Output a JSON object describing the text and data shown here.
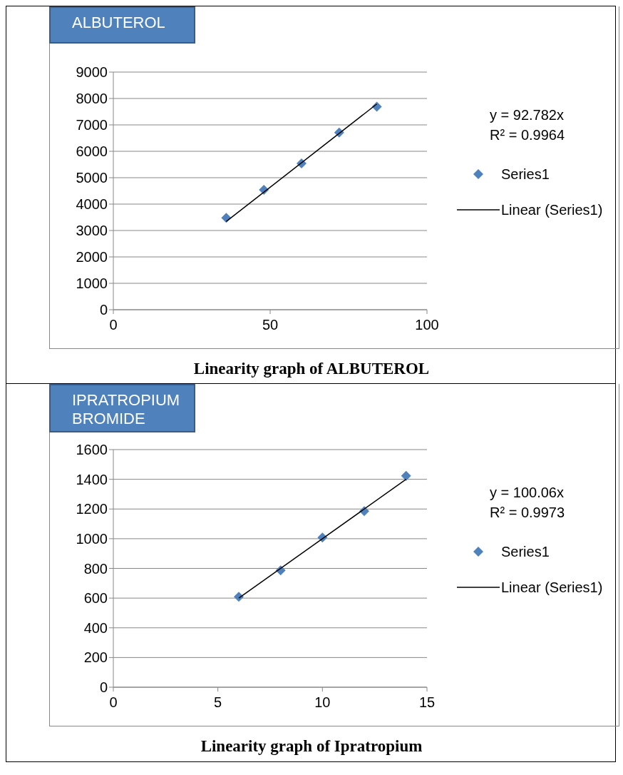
{
  "chart_data": [
    {
      "type": "scatter",
      "title": "ALBUTEROL",
      "annotations": [
        "y = 92.782x",
        "R² = 0.9964",
        "Linearity graph of ALBUTEROL"
      ],
      "xlim": [
        0,
        100
      ],
      "xticks": [
        0,
        50,
        100
      ],
      "ylim": [
        0,
        9000
      ],
      "yticks": [
        0,
        1000,
        2000,
        3000,
        4000,
        5000,
        6000,
        7000,
        8000,
        9000
      ],
      "grid": "y",
      "legend": "right",
      "series": [
        {
          "name": "Series1",
          "marker": "diamond",
          "color": "#4f81bd",
          "x": [
            36,
            48,
            60,
            72,
            84
          ],
          "values": [
            3480,
            4540,
            5540,
            6710,
            7690
          ]
        },
        {
          "name": "Linear (Series1)",
          "type": "line",
          "marker": "none",
          "color": "#000000",
          "x": [
            36,
            84
          ],
          "values": [
            3340,
            7790
          ]
        }
      ]
    },
    {
      "type": "scatter",
      "title": "IPRATROPIUM BROMIDE",
      "annotations": [
        "y = 100.06x",
        "R² = 0.9973",
        "Linearity graph of Ipratropium"
      ],
      "xlim": [
        0,
        15
      ],
      "xticks": [
        0,
        5,
        10,
        15
      ],
      "ylim": [
        0,
        1600
      ],
      "yticks": [
        0,
        200,
        400,
        600,
        800,
        1000,
        1200,
        1400,
        1600
      ],
      "grid": "y",
      "legend": "right",
      "series": [
        {
          "name": "Series1",
          "marker": "diamond",
          "color": "#4f81bd",
          "x": [
            6,
            8,
            10,
            12,
            14
          ],
          "values": [
            609,
            787,
            1008,
            1186,
            1423
          ]
        },
        {
          "name": "Linear (Series1)",
          "type": "line",
          "marker": "none",
          "color": "#000000",
          "x": [
            6,
            14
          ],
          "values": [
            600,
            1400
          ]
        }
      ]
    }
  ]
}
